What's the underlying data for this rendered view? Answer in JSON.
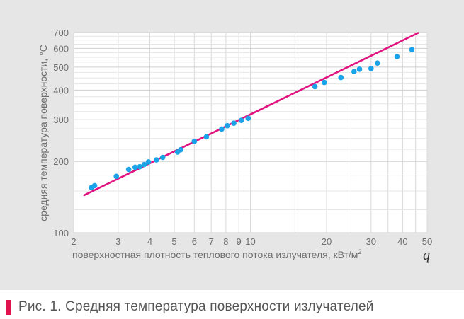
{
  "chart_data": {
    "type": "scatter",
    "x_scale": "log",
    "y_scale": "log",
    "xlim": [
      2,
      50
    ],
    "ylim": [
      100,
      700
    ],
    "grid": true,
    "x_ticks": [
      2,
      3,
      4,
      5,
      6,
      7,
      8,
      9,
      10,
      20,
      30,
      40,
      50
    ],
    "y_ticks": [
      100,
      200,
      300,
      400,
      500,
      600,
      700
    ],
    "xlabel": "поверхностная плотность теплового потока излучателя, кВт/м",
    "xlabel_sup": "2",
    "q_label": "q",
    "ylabel": "средняя температура поверхности, °С",
    "trend_line": {
      "x": [
        2.2,
        46
      ],
      "y": [
        144,
        697
      ],
      "color": "#e0137f"
    },
    "points_color": "#1aa3e8",
    "points": {
      "x": [
        2.35,
        2.42,
        2.95,
        3.3,
        3.5,
        3.65,
        3.8,
        3.95,
        4.25,
        4.5,
        5.15,
        5.3,
        6.0,
        6.7,
        7.7,
        8.1,
        8.6,
        9.2,
        9.8,
        18.0,
        19.6,
        22.8,
        25.7,
        27.0,
        30.0,
        31.8,
        38.0,
        43.5
      ],
      "y": [
        155,
        158,
        173,
        185,
        189,
        190,
        194,
        199,
        203,
        208,
        219,
        224,
        243,
        254,
        274,
        283,
        290,
        298,
        304,
        414,
        431,
        452,
        479,
        490,
        493,
        520,
        554,
        593
      ]
    }
  },
  "caption": "Рис. 1. Средняя температура поверхности излучателей"
}
